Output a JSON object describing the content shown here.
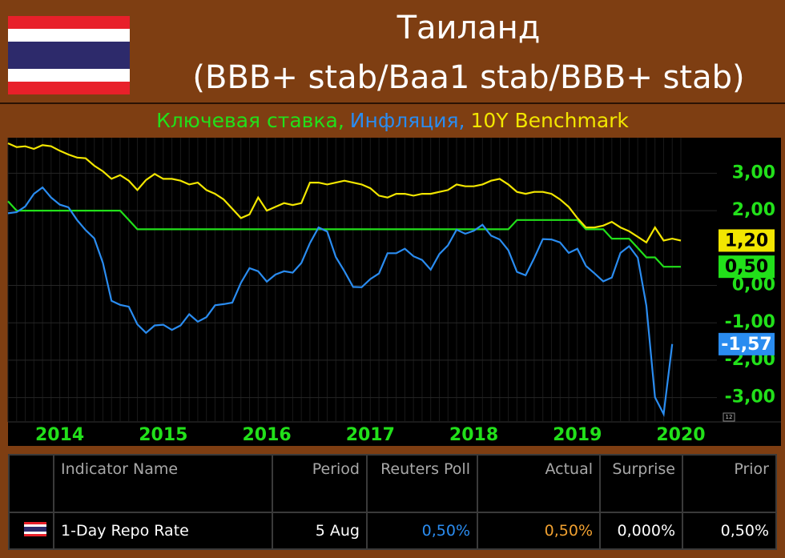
{
  "header": {
    "title": "Таиланд",
    "subtitle": "(BBB+ stab/Baa1 stab/BBB+ stab)"
  },
  "chart_data": {
    "type": "line",
    "categories": [
      null,
      null,
      null,
      null,
      null,
      null,
      "2014",
      null,
      null,
      null,
      null,
      null,
      null,
      null,
      null,
      null,
      null,
      null,
      "2015",
      null,
      null,
      null,
      null,
      null,
      null,
      null,
      null,
      null,
      null,
      null,
      "2016",
      null,
      null,
      null,
      null,
      null,
      null,
      null,
      null,
      null,
      null,
      null,
      "2017",
      null,
      null,
      null,
      null,
      null,
      null,
      null,
      null,
      null,
      null,
      null,
      "2018",
      null,
      null,
      null,
      null,
      null,
      null,
      null,
      null,
      null,
      null,
      null,
      "2019",
      null,
      null,
      null,
      null,
      null,
      null,
      null,
      null,
      null,
      null,
      null,
      "2020"
    ],
    "series": [
      {
        "name": "Ключевая ставка,",
        "color": "#22e01a",
        "values": [
          2.25,
          2,
          2,
          2,
          2,
          2,
          2,
          2,
          2,
          2,
          2,
          2,
          2,
          2,
          1.75,
          1.5,
          1.5,
          1.5,
          1.5,
          1.5,
          1.5,
          1.5,
          1.5,
          1.5,
          1.5,
          1.5,
          1.5,
          1.5,
          1.5,
          1.5,
          1.5,
          1.5,
          1.5,
          1.5,
          1.5,
          1.5,
          1.5,
          1.5,
          1.5,
          1.5,
          1.5,
          1.5,
          1.5,
          1.5,
          1.5,
          1.5,
          1.5,
          1.5,
          1.5,
          1.5,
          1.5,
          1.5,
          1.5,
          1.5,
          1.5,
          1.5,
          1.5,
          1.5,
          1.5,
          1.75,
          1.75,
          1.75,
          1.75,
          1.75,
          1.75,
          1.75,
          1.75,
          1.5,
          1.5,
          1.5,
          1.25,
          1.25,
          1.25,
          1,
          0.75,
          0.75,
          0.5,
          0.5,
          0.5
        ],
        "value_labels": [
          null,
          null,
          null,
          null,
          null,
          null,
          null,
          null,
          null,
          null,
          null,
          null,
          null,
          null,
          null,
          null,
          null,
          null,
          null,
          null,
          null,
          null,
          null,
          null,
          null,
          null,
          null,
          null,
          null,
          null,
          null,
          null,
          null,
          null,
          null,
          null,
          null,
          null,
          null,
          null,
          null,
          null,
          null,
          null,
          null,
          null,
          null,
          null,
          null,
          null,
          null,
          null,
          null,
          null,
          null,
          null,
          null,
          null,
          null,
          null,
          null,
          null,
          null,
          null,
          null,
          null,
          null,
          null,
          null,
          null,
          null,
          null,
          null,
          null,
          null,
          null,
          null,
          null,
          "0,50"
        ]
      },
      {
        "name": "Инфляция,",
        "color": "#2a8cf0",
        "values": [
          1.93,
          1.96,
          2.11,
          2.45,
          2.62,
          2.35,
          2.16,
          2.09,
          1.75,
          1.48,
          1.26,
          0.6,
          -0.41,
          -0.52,
          -0.57,
          -1.04,
          -1.27,
          -1.07,
          -1.05,
          -1.19,
          -1.07,
          -0.77,
          -0.97,
          -0.85,
          -0.53,
          -0.5,
          -0.46,
          0.07,
          0.46,
          0.38,
          0.1,
          0.29,
          0.38,
          0.34,
          0.6,
          1.13,
          1.55,
          1.44,
          0.76,
          0.38,
          -0.04,
          -0.05,
          0.17,
          0.32,
          0.86,
          0.86,
          0.98,
          0.78,
          0.68,
          0.42,
          0.84,
          1.07,
          1.49,
          1.38,
          1.46,
          1.62,
          1.33,
          1.23,
          0.94,
          0.36,
          0.27,
          0.73,
          1.24,
          1.23,
          1.15,
          0.87,
          0.98,
          0.52,
          0.32,
          0.11,
          0.21,
          0.87,
          1.05,
          0.74,
          -0.54,
          -2.99,
          -3.44,
          -1.57,
          null
        ],
        "value_labels": [
          null,
          null,
          null,
          null,
          null,
          null,
          null,
          null,
          null,
          null,
          null,
          null,
          null,
          null,
          null,
          null,
          null,
          null,
          null,
          null,
          null,
          null,
          null,
          null,
          null,
          null,
          null,
          null,
          null,
          null,
          null,
          null,
          null,
          null,
          null,
          null,
          null,
          null,
          null,
          null,
          null,
          null,
          null,
          null,
          null,
          null,
          null,
          null,
          null,
          null,
          null,
          null,
          null,
          null,
          null,
          null,
          null,
          null,
          null,
          null,
          null,
          null,
          null,
          null,
          null,
          null,
          null,
          null,
          null,
          null,
          null,
          null,
          null,
          null,
          null,
          null,
          null,
          "-1,57",
          null
        ]
      },
      {
        "name": "10Y Benchmark",
        "color": "#f2e600",
        "values": [
          3.8,
          3.7,
          3.72,
          3.65,
          3.75,
          3.72,
          3.6,
          3.5,
          3.42,
          3.4,
          3.2,
          3.05,
          2.85,
          2.95,
          2.8,
          2.55,
          2.82,
          2.98,
          2.85,
          2.85,
          2.8,
          2.7,
          2.75,
          2.55,
          2.45,
          2.3,
          2.05,
          1.8,
          1.9,
          2.35,
          2,
          2.1,
          2.2,
          2.15,
          2.2,
          2.75,
          2.75,
          2.7,
          2.75,
          2.8,
          2.75,
          2.7,
          2.6,
          2.4,
          2.35,
          2.45,
          2.45,
          2.4,
          2.45,
          2.45,
          2.5,
          2.55,
          2.7,
          2.65,
          2.65,
          2.7,
          2.8,
          2.85,
          2.7,
          2.5,
          2.45,
          2.5,
          2.5,
          2.45,
          2.3,
          2.1,
          1.8,
          1.55,
          1.55,
          1.6,
          1.7,
          1.55,
          1.45,
          1.3,
          1.15,
          1.55,
          1.2,
          1.25,
          1.2
        ],
        "value_labels": [
          null,
          null,
          null,
          null,
          null,
          null,
          null,
          null,
          null,
          null,
          null,
          null,
          null,
          null,
          null,
          null,
          null,
          null,
          null,
          null,
          null,
          null,
          null,
          null,
          null,
          null,
          null,
          null,
          null,
          null,
          null,
          null,
          null,
          null,
          null,
          null,
          null,
          null,
          null,
          null,
          null,
          null,
          null,
          null,
          null,
          null,
          null,
          null,
          null,
          null,
          null,
          null,
          null,
          null,
          null,
          null,
          null,
          null,
          null,
          null,
          null,
          null,
          null,
          null,
          null,
          null,
          null,
          null,
          null,
          null,
          null,
          null,
          null,
          null,
          null,
          null,
          null,
          null,
          "1,20"
        ]
      }
    ],
    "ylim": [
      -3.5,
      3.95
    ],
    "yticks": [
      {
        "value": 3,
        "label": "3,00"
      },
      {
        "value": 2,
        "label": "2,00"
      },
      {
        "value": 0,
        "label": "0,00"
      },
      {
        "value": -1,
        "label": "-1,00"
      },
      {
        "value": -2,
        "label": "-2,00"
      },
      {
        "value": -3,
        "label": "-3,00"
      }
    ],
    "grid": true,
    "corner_label": "12"
  },
  "table": {
    "columns": [
      "Indicator Name",
      "Period",
      "Reuters Poll",
      "Actual",
      "Surprise",
      "Prior"
    ],
    "rows": [
      [
        "1-Day Repo Rate",
        "5 Aug",
        "0,50%",
        "0,50%",
        "0,000%",
        "0,50%"
      ]
    ]
  }
}
